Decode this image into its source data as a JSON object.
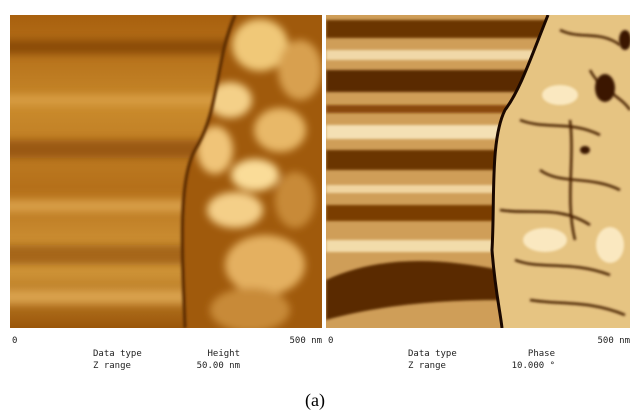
{
  "panels": [
    {
      "scale_start": "0",
      "scale_end": "500 nm",
      "data_type_label": "Data type",
      "data_type": "Height",
      "z_range_label": "Z range",
      "z_range": "50.00 nm"
    },
    {
      "scale_start": "0",
      "scale_end": "500 nm",
      "data_type_label": "Data type",
      "data_type": "Phase",
      "z_range_label": "Z range",
      "z_range": "10.000 °"
    }
  ],
  "caption": "(a)"
}
